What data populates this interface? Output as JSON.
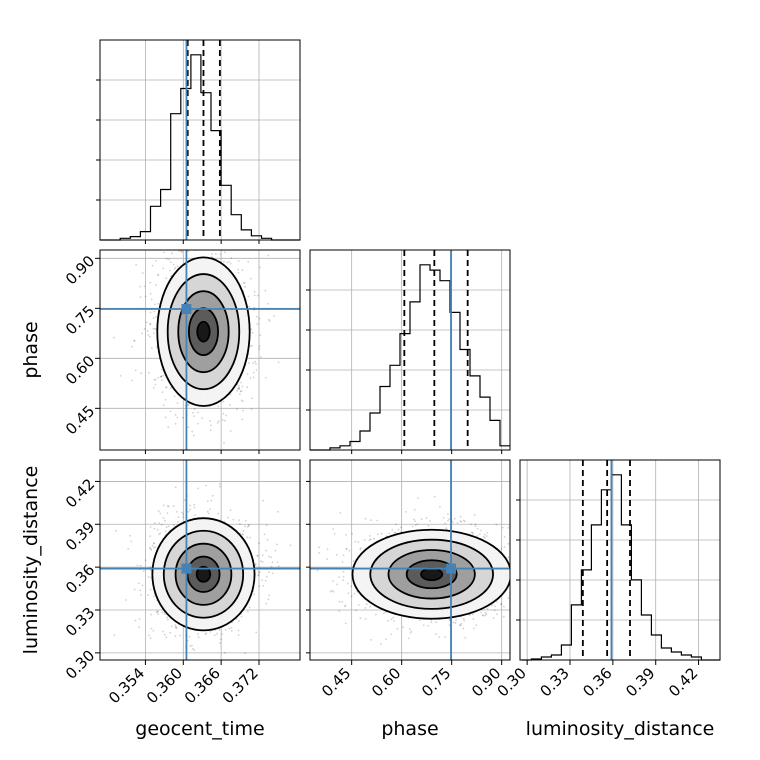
{
  "chart_data": {
    "type": "corner",
    "parameters": [
      {
        "name": "geocent_time",
        "range": [
          0.3468,
          0.3785
        ],
        "ticks": [
          0.354,
          0.36,
          0.366,
          0.372
        ],
        "tick_labels": [
          "0.354",
          "0.360",
          "0.366",
          "0.372"
        ],
        "truth": 0.3605,
        "quantiles": [
          0.3607,
          0.3632,
          0.3658
        ]
      },
      {
        "name": "phase",
        "range": [
          0.325,
          0.925
        ],
        "ticks": [
          0.45,
          0.6,
          0.75,
          0.9
        ],
        "tick_labels": [
          "0.45",
          "0.60",
          "0.75",
          "0.90"
        ],
        "truth": 0.748,
        "quantiles": [
          0.608,
          0.698,
          0.798
        ]
      },
      {
        "name": "luminosity_distance",
        "range": [
          0.295,
          0.435
        ],
        "ticks": [
          0.3,
          0.33,
          0.36,
          0.39,
          0.42
        ],
        "tick_labels": [
          "0.30",
          "0.33",
          "0.36",
          "0.39",
          "0.42"
        ],
        "truth": 0.359,
        "quantiles": [
          0.339,
          0.356,
          0.372
        ]
      }
    ],
    "histograms": [
      {
        "param": "geocent_time",
        "bin_edges": [
          0.3468,
          0.3484,
          0.35,
          0.3516,
          0.3532,
          0.3548,
          0.3564,
          0.358,
          0.3596,
          0.3612,
          0.3628,
          0.3644,
          0.366,
          0.3676,
          0.3692,
          0.3708,
          0.3724,
          0.374,
          0.3756,
          0.3772,
          0.3788
        ],
        "counts": [
          0,
          0,
          2,
          4,
          10,
          40,
          60,
          150,
          180,
          220,
          175,
          130,
          65,
          30,
          12,
          5,
          2,
          0,
          0,
          0
        ]
      },
      {
        "param": "phase",
        "bin_edges": [
          0.325,
          0.355,
          0.385,
          0.415,
          0.445,
          0.475,
          0.505,
          0.535,
          0.565,
          0.595,
          0.625,
          0.655,
          0.685,
          0.715,
          0.745,
          0.775,
          0.805,
          0.835,
          0.865,
          0.895,
          0.925
        ],
        "counts": [
          0,
          0,
          2,
          4,
          8,
          18,
          35,
          60,
          80,
          110,
          140,
          175,
          170,
          160,
          130,
          95,
          70,
          50,
          28,
          4
        ]
      },
      {
        "param": "luminosity_distance",
        "bin_edges": [
          0.296,
          0.303,
          0.31,
          0.317,
          0.324,
          0.331,
          0.338,
          0.345,
          0.352,
          0.359,
          0.366,
          0.373,
          0.38,
          0.387,
          0.394,
          0.401,
          0.408,
          0.415,
          0.422,
          0.429,
          0.436
        ],
        "counts": [
          0,
          1,
          3,
          5,
          15,
          55,
          90,
          135,
          170,
          185,
          135,
          80,
          45,
          25,
          12,
          8,
          5,
          3,
          0,
          0
        ]
      }
    ],
    "joint": [
      {
        "x": "geocent_time",
        "y": "phase",
        "center": [
          0.3632,
          0.68
        ]
      },
      {
        "x": "geocent_time",
        "y": "luminosity_distance",
        "center": [
          0.3632,
          0.355
        ]
      },
      {
        "x": "phase",
        "y": "luminosity_distance",
        "center": [
          0.69,
          0.355
        ]
      }
    ],
    "truth_color": "#4682b4",
    "grid": true
  }
}
